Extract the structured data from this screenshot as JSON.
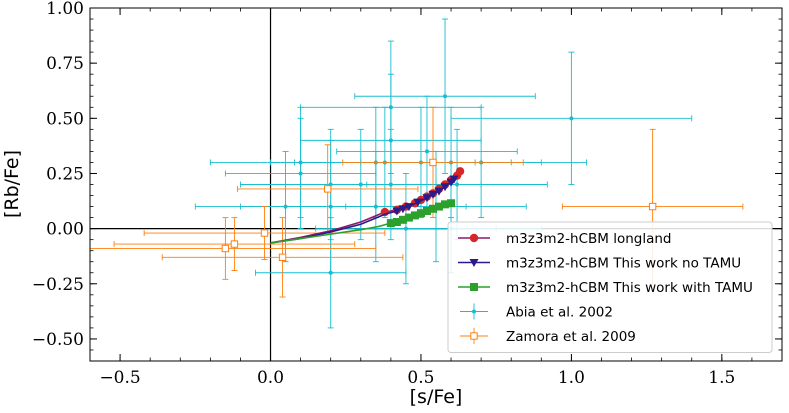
{
  "chart_data": {
    "type": "scatter",
    "xlabel": "[s/Fe]",
    "ylabel": "[Rb/Fe]",
    "xlim": [
      -0.6,
      1.7
    ],
    "ylim": [
      -0.6,
      1.0
    ],
    "xticks": [
      -0.5,
      0.0,
      0.5,
      1.0,
      1.5
    ],
    "xtick_labels": [
      "−0.5",
      "0.0",
      "0.5",
      "1.0",
      "1.5"
    ],
    "yticks": [
      -0.5,
      -0.25,
      0.0,
      0.25,
      0.5,
      0.75,
      1.0
    ],
    "ytick_labels": [
      "−0.50",
      "−0.25",
      "0.00",
      "0.25",
      "0.50",
      "0.75",
      "1.00"
    ],
    "reference_lines": {
      "x": 0.0,
      "y": 0.0
    },
    "legend_position": "lower-right",
    "series": [
      {
        "name": "m3z3m2-hCBM longland",
        "kind": "line_markers",
        "marker": "circle",
        "color": "#d62728",
        "line_color": "#8b1a6b",
        "x": [
          0.0,
          0.1,
          0.2,
          0.3,
          0.38,
          0.42,
          0.45,
          0.48,
          0.5,
          0.52,
          0.54,
          0.56,
          0.58,
          0.6,
          0.62,
          0.63
        ],
        "y": [
          -0.065,
          -0.04,
          -0.01,
          0.03,
          0.075,
          0.085,
          0.1,
          0.115,
          0.13,
          0.145,
          0.16,
          0.18,
          0.2,
          0.22,
          0.24,
          0.26
        ],
        "marker_from_index": 4
      },
      {
        "name": "m3z3m2-hCBM This work no TAMU",
        "kind": "line_markers",
        "marker": "triangle-down",
        "color": "#2a1a8a",
        "line_color": "#2a1a8a",
        "x": [
          0.0,
          0.1,
          0.2,
          0.3,
          0.38,
          0.42,
          0.44,
          0.46,
          0.49,
          0.52,
          0.54,
          0.56,
          0.58,
          0.6,
          0.61
        ],
        "y": [
          -0.065,
          -0.045,
          -0.015,
          0.02,
          0.065,
          0.08,
          0.09,
          0.1,
          0.12,
          0.14,
          0.155,
          0.17,
          0.19,
          0.21,
          0.225
        ],
        "marker_from_index": 5
      },
      {
        "name": "m3z3m2-hCBM This work with TAMU",
        "kind": "line_markers",
        "marker": "square",
        "color": "#2ca02c",
        "line_color": "#2ca02c",
        "x": [
          0.0,
          0.1,
          0.2,
          0.3,
          0.36,
          0.4,
          0.42,
          0.44,
          0.46,
          0.48,
          0.5,
          0.52,
          0.54,
          0.56,
          0.58,
          0.6
        ],
        "y": [
          -0.065,
          -0.045,
          -0.025,
          -0.005,
          0.01,
          0.025,
          0.03,
          0.04,
          0.05,
          0.06,
          0.07,
          0.08,
          0.09,
          0.1,
          0.11,
          0.115
        ],
        "marker_from_index": 5
      },
      {
        "name": "Abia et al. 2002",
        "kind": "errorbar",
        "marker": "dot",
        "color": "#17becf",
        "points": [
          {
            "x": 0.1,
            "y": 0.3,
            "xerr": 0.3,
            "yerr": 0.25
          },
          {
            "x": 0.2,
            "y": 0.2,
            "xerr": 0.3,
            "yerr": 0.25
          },
          {
            "x": 0.1,
            "y": 0.25,
            "xerr": 0.25,
            "yerr": 0.25
          },
          {
            "x": 0.05,
            "y": 0.1,
            "xerr": 0.3,
            "yerr": 0.25
          },
          {
            "x": 0.2,
            "y": 0.1,
            "xerr": 0.3,
            "yerr": 0.3
          },
          {
            "x": 0.3,
            "y": 0.2,
            "xerr": 0.25,
            "yerr": 0.25
          },
          {
            "x": 0.35,
            "y": 0.3,
            "xerr": 0.35,
            "yerr": 0.25
          },
          {
            "x": 0.4,
            "y": 0.55,
            "xerr": 0.3,
            "yerr": 0.3
          },
          {
            "x": 0.4,
            "y": 0.4,
            "xerr": 0.3,
            "yerr": 0.3
          },
          {
            "x": 0.38,
            "y": 0.3,
            "xerr": 0.3,
            "yerr": 0.25
          },
          {
            "x": 0.35,
            "y": 0.1,
            "xerr": 0.3,
            "yerr": 0.25
          },
          {
            "x": 0.4,
            "y": 0.2,
            "xerr": 0.3,
            "yerr": 0.25
          },
          {
            "x": 0.45,
            "y": 0.0,
            "xerr": 0.3,
            "yerr": 0.25
          },
          {
            "x": 0.5,
            "y": 0.3,
            "xerr": 0.3,
            "yerr": 0.25
          },
          {
            "x": 0.55,
            "y": 0.1,
            "xerr": 0.3,
            "yerr": 0.25
          },
          {
            "x": 0.52,
            "y": 0.35,
            "xerr": 0.3,
            "yerr": 0.25
          },
          {
            "x": 0.58,
            "y": 0.6,
            "xerr": 0.3,
            "yerr": 0.35
          },
          {
            "x": 0.6,
            "y": 0.3,
            "xerr": 0.3,
            "yerr": 0.25
          },
          {
            "x": 0.62,
            "y": 0.2,
            "xerr": 0.3,
            "yerr": 0.25
          },
          {
            "x": 0.6,
            "y": 0.0,
            "xerr": 0.3,
            "yerr": 0.2
          },
          {
            "x": 0.7,
            "y": 0.3,
            "xerr": 0.35,
            "yerr": 0.25
          },
          {
            "x": 1.0,
            "y": 0.5,
            "xerr": 0.4,
            "yerr": 0.3
          },
          {
            "x": 0.2,
            "y": -0.2,
            "xerr": 0.25,
            "yerr": 0.25
          }
        ]
      },
      {
        "name": "Zamora et al. 2009",
        "kind": "errorbar",
        "marker": "open-square",
        "color": "#ff7f0e",
        "points": [
          {
            "x": -0.15,
            "y": -0.09,
            "xerr": 0.5,
            "yerr": 0.14
          },
          {
            "x": -0.12,
            "y": -0.07,
            "xerr": 0.4,
            "yerr": 0.12
          },
          {
            "x": -0.02,
            "y": -0.02,
            "xerr": 0.4,
            "yerr": 0.12
          },
          {
            "x": 0.04,
            "y": -0.13,
            "xerr": 0.4,
            "yerr": 0.18
          },
          {
            "x": 0.19,
            "y": 0.18,
            "xerr": 0.3,
            "yerr": 0.2
          },
          {
            "x": 0.54,
            "y": 0.3,
            "xerr": 0.3,
            "yerr": 0.25
          },
          {
            "x": 1.27,
            "y": 0.1,
            "xerr": 0.3,
            "yerr": 0.35
          }
        ]
      }
    ]
  }
}
